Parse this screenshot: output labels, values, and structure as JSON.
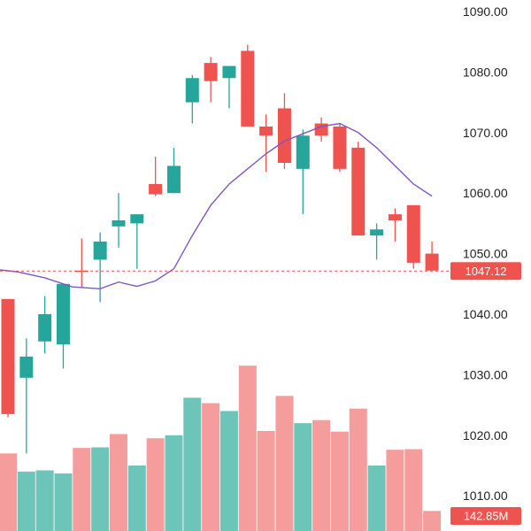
{
  "chart_data": {
    "type": "candlestick",
    "title": "",
    "xlabel": "",
    "ylabel": "",
    "ylim": [
      1005,
      1092
    ],
    "y_ticks": [
      "1010.00",
      "1020.00",
      "1030.00",
      "1040.00",
      "1050.00",
      "1060.00",
      "1070.00",
      "1080.00",
      "1090.00"
    ],
    "grid": false,
    "colors": {
      "up": "#26a69a",
      "down": "#ef5350",
      "up_volume": "#6cc5b8",
      "down_volume": "#f59c9c",
      "ma_line": "#7e57c2",
      "price_line": "#ef5350"
    },
    "candles": [
      {
        "open": 1042.5,
        "high": 1042.5,
        "low": 1023.0,
        "close": 1023.5
      },
      {
        "open": 1029.5,
        "high": 1036.0,
        "low": 1017.0,
        "close": 1033.0
      },
      {
        "open": 1035.5,
        "high": 1043.0,
        "low": 1033.5,
        "close": 1040.0
      },
      {
        "open": 1035.0,
        "high": 1045.0,
        "low": 1031.0,
        "close": 1045.0
      },
      {
        "open": 1047.2,
        "high": 1052.5,
        "low": 1044.5,
        "close": 1047.0
      },
      {
        "open": 1049.0,
        "high": 1053.5,
        "low": 1042.0,
        "close": 1052.0
      },
      {
        "open": 1054.5,
        "high": 1060.0,
        "low": 1051.0,
        "close": 1055.5
      },
      {
        "open": 1055.0,
        "high": 1056.5,
        "low": 1047.5,
        "close": 1056.5
      },
      {
        "open": 1061.5,
        "high": 1066.0,
        "low": 1059.5,
        "close": 1059.8
      },
      {
        "open": 1060.0,
        "high": 1067.5,
        "low": 1060.0,
        "close": 1064.5
      },
      {
        "open": 1075.0,
        "high": 1079.5,
        "low": 1071.5,
        "close": 1079.0
      },
      {
        "open": 1081.5,
        "high": 1082.5,
        "low": 1075.0,
        "close": 1078.5
      },
      {
        "open": 1079.0,
        "high": 1081.0,
        "low": 1074.0,
        "close": 1081.0
      },
      {
        "open": 1083.5,
        "high": 1084.5,
        "low": 1071.0,
        "close": 1071.0
      },
      {
        "open": 1071.0,
        "high": 1073.0,
        "low": 1063.5,
        "close": 1069.5
      },
      {
        "open": 1074.0,
        "high": 1076.5,
        "low": 1064.0,
        "close": 1065.0
      },
      {
        "open": 1064.0,
        "high": 1070.5,
        "low": 1056.5,
        "close": 1069.5
      },
      {
        "open": 1071.5,
        "high": 1072.5,
        "low": 1068.5,
        "close": 1069.5
      },
      {
        "open": 1071.0,
        "high": 1071.5,
        "low": 1063.5,
        "close": 1064.0
      },
      {
        "open": 1067.5,
        "high": 1068.5,
        "low": 1053.0,
        "close": 1053.0
      },
      {
        "open": 1053.0,
        "high": 1055.0,
        "low": 1049.0,
        "close": 1054.0
      },
      {
        "open": 1056.5,
        "high": 1057.5,
        "low": 1052.0,
        "close": 1055.5
      },
      {
        "open": 1058.0,
        "high": 1058.0,
        "low": 1047.5,
        "close": 1048.5
      },
      {
        "open": 1050.0,
        "high": 1052.0,
        "low": 1047.2,
        "close": 1047.2
      }
    ],
    "volumes": [
      {
        "value": 1017.0,
        "direction": "down"
      },
      {
        "value": 1014.0,
        "direction": "up"
      },
      {
        "value": 1014.2,
        "direction": "up"
      },
      {
        "value": 1013.7,
        "direction": "up"
      },
      {
        "value": 1017.9,
        "direction": "down"
      },
      {
        "value": 1018.0,
        "direction": "up"
      },
      {
        "value": 1020.2,
        "direction": "down"
      },
      {
        "value": 1015.0,
        "direction": "up"
      },
      {
        "value": 1019.5,
        "direction": "down"
      },
      {
        "value": 1020.0,
        "direction": "up"
      },
      {
        "value": 1026.2,
        "direction": "up"
      },
      {
        "value": 1025.3,
        "direction": "down"
      },
      {
        "value": 1024.0,
        "direction": "up"
      },
      {
        "value": 1031.5,
        "direction": "down"
      },
      {
        "value": 1020.7,
        "direction": "down"
      },
      {
        "value": 1026.5,
        "direction": "down"
      },
      {
        "value": 1022.0,
        "direction": "up"
      },
      {
        "value": 1022.5,
        "direction": "down"
      },
      {
        "value": 1020.6,
        "direction": "down"
      },
      {
        "value": 1024.4,
        "direction": "down"
      },
      {
        "value": 1015.0,
        "direction": "up"
      },
      {
        "value": 1017.6,
        "direction": "down"
      },
      {
        "value": 1017.7,
        "direction": "down"
      },
      {
        "value": 1007.5,
        "direction": "down"
      }
    ],
    "moving_average": [
      {
        "i": -1.0,
        "y": 1047.5
      },
      {
        "i": 0.5,
        "y": 1047.0
      },
      {
        "i": 2.0,
        "y": 1046.0
      },
      {
        "i": 3.5,
        "y": 1044.5
      },
      {
        "i": 5.0,
        "y": 1044.2
      },
      {
        "i": 6.0,
        "y": 1045.3
      },
      {
        "i": 7.0,
        "y": 1044.6
      },
      {
        "i": 8.0,
        "y": 1045.5
      },
      {
        "i": 9.0,
        "y": 1047.5
      },
      {
        "i": 10.0,
        "y": 1053.0
      },
      {
        "i": 11.0,
        "y": 1058.0
      },
      {
        "i": 12.0,
        "y": 1061.5
      },
      {
        "i": 13.0,
        "y": 1064.0
      },
      {
        "i": 14.0,
        "y": 1066.5
      },
      {
        "i": 15.0,
        "y": 1068.6
      },
      {
        "i": 16.0,
        "y": 1069.8
      },
      {
        "i": 17.0,
        "y": 1071.0
      },
      {
        "i": 18.0,
        "y": 1071.5
      },
      {
        "i": 19.0,
        "y": 1070.0
      },
      {
        "i": 20.0,
        "y": 1067.5
      },
      {
        "i": 21.0,
        "y": 1064.5
      },
      {
        "i": 22.0,
        "y": 1061.5
      },
      {
        "i": 23.0,
        "y": 1059.5
      }
    ],
    "last_price": {
      "value": 1047.12,
      "label": "1047.12"
    },
    "last_volume": {
      "label": "142.85M"
    }
  }
}
